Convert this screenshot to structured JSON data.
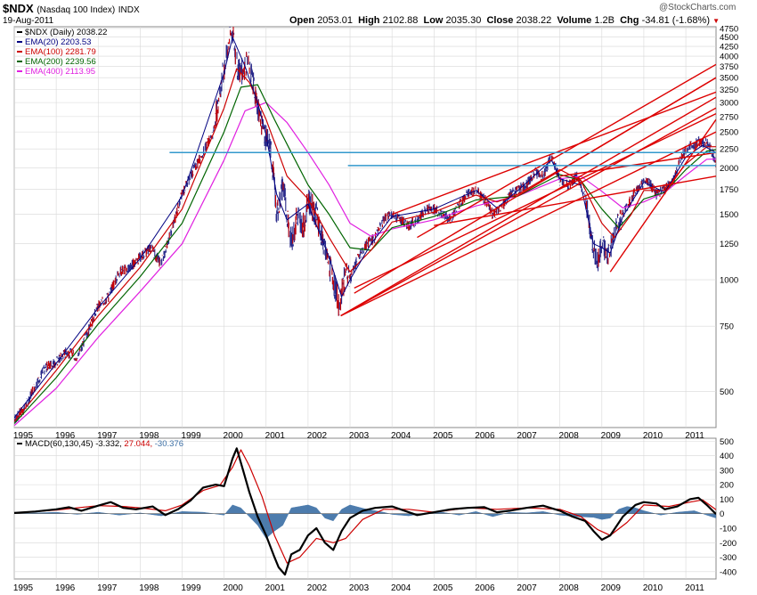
{
  "header": {
    "symbol": "$NDX",
    "name": "(Nasdaq 100 Index)",
    "exchange": "INDX",
    "date": "19-Aug-2011",
    "watermark": "@StockCharts.com",
    "open_label": "Open",
    "open_value": "2053.01",
    "high_label": "High",
    "high_value": "2102.88",
    "low_label": "Low",
    "low_value": "2035.30",
    "close_label": "Close",
    "close_value": "2038.22",
    "volume_label": "Volume",
    "volume_value": "1.2B",
    "chg_label": "Chg",
    "chg_value": "-34.81 (-1.68%)",
    "chg_arrow": "▼"
  },
  "colors": {
    "price": "#2a2a8a",
    "price_down": "#cc0000",
    "ema20": "#000080",
    "ema100": "#cc0000",
    "ema200": "#006400",
    "ema400": "#e020e0",
    "trend": "#dd0000",
    "support": "#3399cc",
    "macd": "#000000",
    "signal": "#cc0000",
    "hist": "#3a6ea5",
    "grid": "#d8d8d8"
  },
  "chart_data": [
    {
      "type": "line",
      "title": "$NDX (Daily) 2038.22",
      "scale": "log",
      "ylim": [
        400,
        4800
      ],
      "xlim": [
        1995.0,
        2011.72
      ],
      "y_ticks": [
        500,
        750,
        1000,
        1250,
        1500,
        1750,
        2000,
        2250,
        2500,
        2750,
        3000,
        3250,
        3500,
        3750,
        4000,
        4250,
        4500,
        4750
      ],
      "x_ticks": [
        "1995",
        "1996",
        "1997",
        "1998",
        "1999",
        "2000",
        "2001",
        "2002",
        "2003",
        "2004",
        "2005",
        "2006",
        "2007",
        "2008",
        "2009",
        "2010",
        "2011"
      ],
      "legend": [
        {
          "label": "$NDX (Daily) 2038.22",
          "color": "#000000"
        },
        {
          "label": "EMA(20) 2203.53",
          "color": "#000080"
        },
        {
          "label": "EMA(100) 2281.79",
          "color": "#cc0000"
        },
        {
          "label": "EMA(200) 2239.56",
          "color": "#006400"
        },
        {
          "label": "EMA(400) 2113.95",
          "color": "#e020e0"
        }
      ],
      "price": {
        "x": [
          1995.0,
          1995.25,
          1995.5,
          1995.75,
          1996.0,
          1996.25,
          1996.5,
          1996.75,
          1997.0,
          1997.25,
          1997.5,
          1997.75,
          1998.0,
          1998.25,
          1998.5,
          1998.75,
          1999.0,
          1999.25,
          1999.5,
          1999.75,
          2000.0,
          2000.1,
          2000.2,
          2000.3,
          2000.4,
          2000.5,
          2000.6,
          2000.7,
          2000.8,
          2001.0,
          2001.1,
          2001.25,
          2001.4,
          2001.6,
          2001.75,
          2001.9,
          2002.0,
          2002.2,
          2002.4,
          2002.6,
          2002.75,
          2002.9,
          2003.0,
          2003.2,
          2003.4,
          2003.6,
          2003.8,
          2004.0,
          2004.2,
          2004.4,
          2004.6,
          2004.8,
          2005.0,
          2005.2,
          2005.4,
          2005.6,
          2005.8,
          2006.0,
          2006.2,
          2006.4,
          2006.6,
          2006.8,
          2007.0,
          2007.2,
          2007.4,
          2007.6,
          2007.8,
          2008.0,
          2008.2,
          2008.4,
          2008.6,
          2008.75,
          2008.9,
          2009.0,
          2009.15,
          2009.3,
          2009.5,
          2009.7,
          2009.9,
          2010.1,
          2010.3,
          2010.5,
          2010.7,
          2010.9,
          2011.1,
          2011.3,
          2011.5,
          2011.6,
          2011.72
        ],
        "y": [
          420,
          450,
          520,
          580,
          600,
          640,
          620,
          720,
          850,
          900,
          1050,
          1080,
          1150,
          1220,
          1100,
          1350,
          1700,
          1950,
          2200,
          2500,
          3700,
          4300,
          4700,
          3800,
          3600,
          3800,
          3800,
          3400,
          2900,
          2400,
          2300,
          1500,
          1800,
          1250,
          1500,
          1400,
          1650,
          1500,
          1200,
          1000,
          850,
          1050,
          1000,
          1150,
          1250,
          1300,
          1450,
          1500,
          1450,
          1400,
          1450,
          1550,
          1550,
          1500,
          1450,
          1600,
          1700,
          1750,
          1650,
          1500,
          1550,
          1700,
          1750,
          1800,
          1950,
          1900,
          2150,
          1850,
          1800,
          1900,
          1700,
          1300,
          1100,
          1250,
          1150,
          1350,
          1500,
          1650,
          1800,
          1850,
          1700,
          1750,
          1850,
          2150,
          2300,
          2350,
          2350,
          2250,
          2038
        ]
      },
      "ema20": {
        "x": [
          1995.0,
          1996.0,
          1997.0,
          1998.0,
          1999.0,
          2000.0,
          2000.2,
          2000.5,
          2000.8,
          2001.0,
          2001.25,
          2001.5,
          2002.0,
          2002.5,
          2002.8,
          2003.0,
          2003.5,
          2004.0,
          2005.0,
          2006.0,
          2006.5,
          2007.0,
          2007.8,
          2008.0,
          2008.5,
          2008.8,
          2009.0,
          2009.2,
          2009.5,
          2010.0,
          2010.5,
          2011.0,
          2011.4,
          2011.72
        ],
        "y": [
          425,
          595,
          840,
          1140,
          1680,
          3600,
          4500,
          3750,
          3000,
          2450,
          1700,
          1450,
          1600,
          1150,
          900,
          1000,
          1250,
          1480,
          1550,
          1740,
          1560,
          1740,
          2100,
          1870,
          1800,
          1250,
          1220,
          1180,
          1480,
          1830,
          1720,
          2140,
          2300,
          2200
        ]
      },
      "ema100": {
        "x": [
          1995.0,
          1996.0,
          1997.0,
          1998.0,
          1999.0,
          2000.0,
          2000.3,
          2000.6,
          2001.0,
          2001.5,
          2002.0,
          2002.5,
          2003.0,
          2003.5,
          2004.0,
          2005.0,
          2006.0,
          2006.5,
          2007.0,
          2008.0,
          2008.5,
          2009.0,
          2009.3,
          2009.7,
          2010.0,
          2010.5,
          2011.0,
          2011.5,
          2011.72
        ],
        "y": [
          415,
          570,
          800,
          1080,
          1550,
          2900,
          3700,
          3400,
          2700,
          1900,
          1650,
          1300,
          1050,
          1200,
          1430,
          1520,
          1690,
          1620,
          1700,
          1980,
          1850,
          1420,
          1300,
          1500,
          1740,
          1740,
          2050,
          2280,
          2282
        ]
      },
      "ema200": {
        "x": [
          1995.0,
          1996.0,
          1997.0,
          1998.0,
          1999.0,
          2000.0,
          2000.4,
          2000.8,
          2001.2,
          2001.6,
          2002.0,
          2002.5,
          2003.0,
          2003.5,
          2004.0,
          2005.0,
          2006.0,
          2007.0,
          2008.0,
          2008.5,
          2009.0,
          2009.4,
          2010.0,
          2010.5,
          2011.0,
          2011.5,
          2011.72
        ],
        "y": [
          410,
          545,
          760,
          1020,
          1420,
          2500,
          3300,
          3350,
          2700,
          2200,
          1800,
          1500,
          1220,
          1200,
          1380,
          1480,
          1640,
          1680,
          1920,
          1850,
          1550,
          1380,
          1650,
          1720,
          1980,
          2220,
          2240
        ]
      },
      "ema400": {
        "x": [
          1995.0,
          1996.0,
          1997.0,
          1998.0,
          1999.0,
          2000.0,
          2000.5,
          2001.0,
          2001.5,
          2002.0,
          2002.5,
          2003.0,
          2003.5,
          2004.0,
          2005.0,
          2006.0,
          2007.0,
          2008.0,
          2008.5,
          2009.0,
          2009.5,
          2010.0,
          2010.5,
          2011.0,
          2011.5,
          2011.72
        ],
        "y": [
          405,
          510,
          700,
          930,
          1250,
          2100,
          2850,
          3000,
          2650,
          2200,
          1800,
          1420,
          1310,
          1370,
          1450,
          1580,
          1680,
          1870,
          1900,
          1730,
          1560,
          1620,
          1720,
          1910,
          2110,
          2114
        ]
      },
      "trendlines": [
        {
          "x1": 2002.78,
          "y1": 800,
          "x2": 2011.72,
          "y2": 3100
        },
        {
          "x1": 2002.78,
          "y1": 800,
          "x2": 2011.72,
          "y2": 2900
        },
        {
          "x1": 2002.78,
          "y1": 800,
          "x2": 2011.72,
          "y2": 2500
        },
        {
          "x1": 2003.1,
          "y1": 920,
          "x2": 2011.72,
          "y2": 3500
        },
        {
          "x1": 2003.1,
          "y1": 950,
          "x2": 2011.72,
          "y2": 2800
        },
        {
          "x1": 2004.0,
          "y1": 1500,
          "x2": 2011.72,
          "y2": 3200
        },
        {
          "x1": 2004.6,
          "y1": 1300,
          "x2": 2011.72,
          "y2": 3800
        },
        {
          "x1": 2005.0,
          "y1": 1400,
          "x2": 2011.72,
          "y2": 1900
        },
        {
          "x1": 2008.1,
          "y1": 2000,
          "x2": 2011.72,
          "y2": 3500
        },
        {
          "x1": 2009.2,
          "y1": 1050,
          "x2": 2011.72,
          "y2": 2700
        },
        {
          "x1": 2008.0,
          "y1": 1900,
          "x2": 2011.72,
          "y2": 2200
        }
      ],
      "support_lines": [
        {
          "x1": 1998.7,
          "x2": 2011.72,
          "y": 2200
        },
        {
          "x1": 2002.95,
          "x2": 2011.72,
          "y": 2030
        }
      ]
    },
    {
      "type": "line",
      "title": "MACD(60,130,45)",
      "values_text": [
        {
          "text": "-3.332,",
          "color": "#000000"
        },
        {
          "text": "27.044,",
          "color": "#cc0000"
        },
        {
          "text": "-30.376",
          "color": "#3a6ea5"
        }
      ],
      "ylim": [
        -450,
        520
      ],
      "y_ticks": [
        -400,
        -300,
        -200,
        -100,
        0,
        100,
        200,
        300,
        400,
        500
      ],
      "x_ticks": [
        "1995",
        "1996",
        "1997",
        "1998",
        "1999",
        "2000",
        "2001",
        "2002",
        "2003",
        "2004",
        "2005",
        "2006",
        "2007",
        "2008",
        "2009",
        "2010",
        "2011"
      ],
      "macd": {
        "x": [
          1995.0,
          1995.5,
          1996.0,
          1996.3,
          1996.6,
          1997.0,
          1997.3,
          1997.6,
          1997.9,
          1998.3,
          1998.6,
          1998.9,
          1999.2,
          1999.5,
          1999.8,
          2000.0,
          2000.2,
          2000.3,
          2000.45,
          2000.6,
          2000.8,
          2001.0,
          2001.2,
          2001.3,
          2001.45,
          2001.6,
          2001.8,
          2002.0,
          2002.2,
          2002.4,
          2002.6,
          2002.8,
          2003.0,
          2003.3,
          2003.6,
          2004.0,
          2004.3,
          2004.6,
          2005.0,
          2005.4,
          2005.8,
          2006.2,
          2006.5,
          2006.8,
          2007.2,
          2007.6,
          2008.0,
          2008.3,
          2008.6,
          2008.8,
          2009.0,
          2009.2,
          2009.5,
          2009.8,
          2010.0,
          2010.3,
          2010.5,
          2010.8,
          2011.1,
          2011.3,
          2011.5,
          2011.72
        ],
        "y": [
          5,
          15,
          30,
          45,
          20,
          55,
          80,
          40,
          30,
          50,
          -10,
          30,
          90,
          180,
          200,
          190,
          380,
          450,
          300,
          150,
          -20,
          -150,
          -300,
          -370,
          -420,
          -280,
          -250,
          -150,
          -100,
          -200,
          -250,
          -120,
          -30,
          20,
          40,
          50,
          20,
          -10,
          10,
          30,
          40,
          45,
          10,
          20,
          40,
          55,
          20,
          -20,
          -50,
          -120,
          -180,
          -150,
          -20,
          60,
          80,
          70,
          30,
          50,
          100,
          110,
          60,
          -3
        ]
      },
      "signal": {
        "x": [
          1995.0,
          1996.0,
          1997.0,
          1997.6,
          1998.0,
          1998.6,
          1999.0,
          1999.5,
          1999.9,
          2000.2,
          2000.4,
          2000.6,
          2000.9,
          2001.2,
          2001.5,
          2001.8,
          2002.2,
          2002.6,
          2002.9,
          2003.3,
          2003.8,
          2004.4,
          2005.0,
          2005.8,
          2006.5,
          2007.2,
          2008.0,
          2008.5,
          2008.9,
          2009.2,
          2009.6,
          2010.0,
          2010.6,
          2011.1,
          2011.4,
          2011.72
        ],
        "y": [
          5,
          25,
          55,
          50,
          40,
          20,
          60,
          160,
          195,
          320,
          440,
          330,
          120,
          -150,
          -340,
          -300,
          -170,
          -200,
          -170,
          -40,
          30,
          30,
          10,
          40,
          30,
          40,
          30,
          -20,
          -110,
          -150,
          -60,
          60,
          50,
          80,
          95,
          27
        ]
      },
      "histogram": {
        "x": [
          1995.0,
          1995.5,
          1996.0,
          1996.5,
          1997.0,
          1997.5,
          1998.0,
          1998.5,
          1999.0,
          1999.5,
          2000.0,
          2000.2,
          2000.4,
          2000.6,
          2000.8,
          2001.0,
          2001.2,
          2001.4,
          2001.6,
          2001.8,
          2002.0,
          2002.2,
          2002.4,
          2002.6,
          2002.8,
          2003.0,
          2003.2,
          2003.4,
          2003.6,
          2003.8,
          2004.0,
          2004.4,
          2004.8,
          2005.2,
          2005.6,
          2006.0,
          2006.4,
          2006.8,
          2007.2,
          2007.6,
          2008.0,
          2008.4,
          2008.8,
          2009.0,
          2009.2,
          2009.4,
          2009.6,
          2009.8,
          2010.0,
          2010.4,
          2010.8,
          2011.2,
          2011.5,
          2011.72
        ],
        "y": [
          0,
          5,
          10,
          -5,
          10,
          -10,
          5,
          -15,
          15,
          10,
          -10,
          60,
          40,
          -20,
          -80,
          -170,
          -120,
          -80,
          40,
          50,
          60,
          40,
          -30,
          -50,
          30,
          60,
          45,
          30,
          20,
          10,
          -5,
          -15,
          5,
          10,
          -10,
          15,
          -20,
          10,
          5,
          15,
          -10,
          -20,
          -25,
          -40,
          -30,
          30,
          50,
          40,
          20,
          -10,
          10,
          20,
          -10,
          -30
        ]
      }
    }
  ],
  "x_axis_labels_main": [
    "1995",
    "1996",
    "1997",
    "1998",
    "1999",
    "2000",
    "2001",
    "2002",
    "2003",
    "2004",
    "2005",
    "2006",
    "2007",
    "2008",
    "2009",
    "2010",
    "2011"
  ],
  "x_axis_labels_macd": [
    "1995",
    "1996",
    "1997",
    "1998",
    "1999",
    "2000",
    "2001",
    "2002",
    "2003",
    "2004",
    "2005",
    "2006",
    "2007",
    "2008",
    "2009",
    "2010",
    "2011"
  ]
}
